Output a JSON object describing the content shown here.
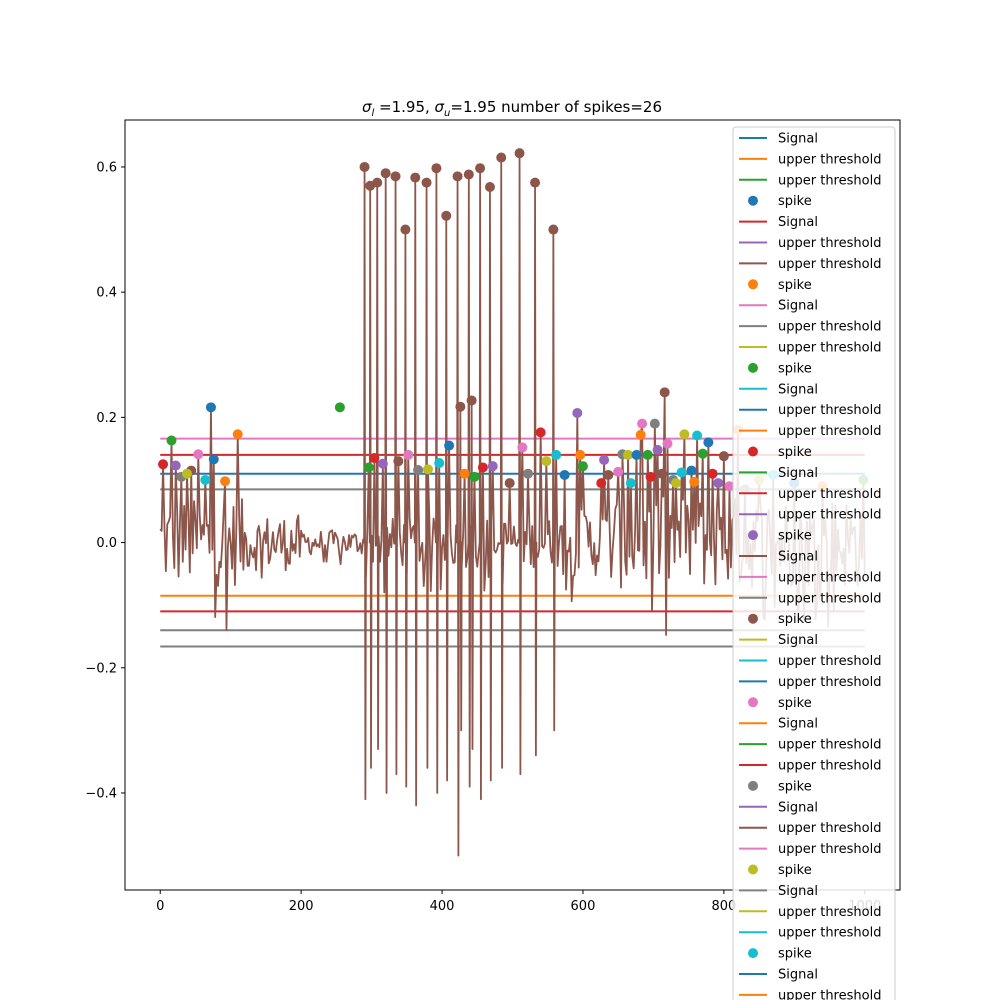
{
  "chart_data": {
    "type": "line",
    "title": {
      "sigma_l_symbol": "σ",
      "sigma_l_sub": "l",
      "sigma_l_rest": " =1.95, ",
      "sigma_u_symbol": "σ",
      "sigma_u_sub": "u",
      "sigma_u_rest": "=1.95 number of spikes=26"
    },
    "xlim": [
      -50,
      1050
    ],
    "ylim": [
      -0.555,
      0.675
    ],
    "x_ticks": [
      0,
      200,
      400,
      600,
      800,
      1000
    ],
    "x_tick_labels": [
      "0",
      "200",
      "400",
      "600",
      "800",
      "1000"
    ],
    "y_ticks": [
      -0.4,
      -0.2,
      0.0,
      0.2,
      0.4,
      0.6
    ],
    "y_tick_labels": [
      "−0.4",
      "−0.2",
      "0.0",
      "0.2",
      "0.4",
      "0.6"
    ],
    "signal_color": "#8c564b",
    "thresholds": [
      {
        "y": 0.166,
        "color": "#e377c2"
      },
      {
        "y": 0.14,
        "color": "#d62728"
      },
      {
        "y": 0.11,
        "color": "#1f77b4"
      },
      {
        "y": 0.085,
        "color": "#7f7f7f"
      },
      {
        "y": -0.085,
        "color": "#ff7f0e"
      },
      {
        "y": -0.11,
        "color": "#d62728"
      },
      {
        "y": -0.14,
        "color": "#7f7f7f"
      },
      {
        "y": -0.166,
        "color": "#7f7f7f"
      }
    ],
    "big_spikes": [
      {
        "x": 290,
        "y": 0.6,
        "low": -0.41
      },
      {
        "x": 298,
        "y": 0.57,
        "low": -0.36
      },
      {
        "x": 308,
        "y": 0.575,
        "low": -0.33
      },
      {
        "x": 320,
        "y": 0.59,
        "low": -0.4
      },
      {
        "x": 334,
        "y": 0.585,
        "low": -0.37
      },
      {
        "x": 348,
        "y": 0.5,
        "low": -0.39
      },
      {
        "x": 362,
        "y": 0.583,
        "low": -0.42
      },
      {
        "x": 378,
        "y": 0.575,
        "low": -0.36
      },
      {
        "x": 392,
        "y": 0.598,
        "low": -0.4
      },
      {
        "x": 406,
        "y": 0.522,
        "low": -0.38
      },
      {
        "x": 422,
        "y": 0.585,
        "low": -0.5
      },
      {
        "x": 426,
        "y": 0.217,
        "low": -0.3
      },
      {
        "x": 438,
        "y": 0.588,
        "low": -0.39
      },
      {
        "x": 442,
        "y": 0.227,
        "low": -0.33
      },
      {
        "x": 454,
        "y": 0.598,
        "low": -0.41
      },
      {
        "x": 468,
        "y": 0.568,
        "low": -0.38
      },
      {
        "x": 484,
        "y": 0.615,
        "low": -0.36
      },
      {
        "x": 510,
        "y": 0.622,
        "low": -0.37
      },
      {
        "x": 532,
        "y": 0.575,
        "low": -0.34
      },
      {
        "x": 558,
        "y": 0.5,
        "low": -0.3
      }
    ],
    "small_spikes": [
      {
        "x": 72,
        "y": 0.216
      },
      {
        "x": 110,
        "y": 0.173
      },
      {
        "x": 255,
        "y": 0.216
      },
      {
        "x": 540,
        "y": 0.176
      },
      {
        "x": 592,
        "y": 0.207
      },
      {
        "x": 716,
        "y": 0.24
      },
      {
        "x": 684,
        "y": 0.19
      },
      {
        "x": 702,
        "y": 0.19
      },
      {
        "x": 744,
        "y": 0.173
      },
      {
        "x": 762,
        "y": 0.171
      },
      {
        "x": 778,
        "y": 0.16
      },
      {
        "x": 820,
        "y": 0.18
      },
      {
        "x": 16,
        "y": 0.163
      },
      {
        "x": 4,
        "y": 0.125
      },
      {
        "x": 22,
        "y": 0.123
      },
      {
        "x": 44,
        "y": 0.115
      },
      {
        "x": 54,
        "y": 0.141
      },
      {
        "x": 30,
        "y": 0.105
      },
      {
        "x": 38,
        "y": 0.11
      },
      {
        "x": 64,
        "y": 0.1
      },
      {
        "x": 76,
        "y": 0.133
      },
      {
        "x": 92,
        "y": 0.098
      },
      {
        "x": 296,
        "y": 0.12
      },
      {
        "x": 304,
        "y": 0.135
      },
      {
        "x": 316,
        "y": 0.126
      },
      {
        "x": 338,
        "y": 0.13
      },
      {
        "x": 352,
        "y": 0.14
      },
      {
        "x": 366,
        "y": 0.116
      },
      {
        "x": 380,
        "y": 0.117
      },
      {
        "x": 396,
        "y": 0.127
      },
      {
        "x": 410,
        "y": 0.155
      },
      {
        "x": 432,
        "y": 0.11
      },
      {
        "x": 446,
        "y": 0.105
      },
      {
        "x": 458,
        "y": 0.12
      },
      {
        "x": 472,
        "y": 0.122
      },
      {
        "x": 496,
        "y": 0.095
      },
      {
        "x": 514,
        "y": 0.152
      },
      {
        "x": 522,
        "y": 0.11
      },
      {
        "x": 548,
        "y": 0.13
      },
      {
        "x": 562,
        "y": 0.14
      },
      {
        "x": 574,
        "y": 0.108
      },
      {
        "x": 596,
        "y": 0.14
      },
      {
        "x": 600,
        "y": 0.122
      },
      {
        "x": 626,
        "y": 0.095
      },
      {
        "x": 630,
        "y": 0.132
      },
      {
        "x": 636,
        "y": 0.108
      },
      {
        "x": 650,
        "y": 0.113
      },
      {
        "x": 656,
        "y": 0.141
      },
      {
        "x": 664,
        "y": 0.14
      },
      {
        "x": 668,
        "y": 0.095
      },
      {
        "x": 676,
        "y": 0.14
      },
      {
        "x": 682,
        "y": 0.172
      },
      {
        "x": 692,
        "y": 0.14
      },
      {
        "x": 696,
        "y": 0.105
      },
      {
        "x": 706,
        "y": 0.148
      },
      {
        "x": 712,
        "y": 0.11
      },
      {
        "x": 720,
        "y": 0.158
      },
      {
        "x": 728,
        "y": 0.1
      },
      {
        "x": 732,
        "y": 0.095
      },
      {
        "x": 740,
        "y": 0.112
      },
      {
        "x": 754,
        "y": 0.115
      },
      {
        "x": 758,
        "y": 0.097
      },
      {
        "x": 770,
        "y": 0.142
      },
      {
        "x": 784,
        "y": 0.11
      },
      {
        "x": 792,
        "y": 0.095
      },
      {
        "x": 800,
        "y": 0.138
      },
      {
        "x": 808,
        "y": 0.09
      },
      {
        "x": 830,
        "y": 0.085
      },
      {
        "x": 850,
        "y": 0.1
      },
      {
        "x": 870,
        "y": 0.108
      },
      {
        "x": 900,
        "y": 0.095
      },
      {
        "x": 940,
        "y": 0.09
      },
      {
        "x": 998,
        "y": 0.1
      }
    ],
    "noise_segments": [
      {
        "x0": 0,
        "x1": 120,
        "amp": 0.07,
        "minus": 0.17
      },
      {
        "x0": 120,
        "x1": 200,
        "amp": 0.045,
        "minus": 0.08
      },
      {
        "x0": 200,
        "x1": 290,
        "amp": 0.02,
        "minus": 0.04
      },
      {
        "x0": 290,
        "x1": 570,
        "amp": 0.04,
        "minus": 0.08
      },
      {
        "x0": 570,
        "x1": 640,
        "amp": 0.055,
        "minus": 0.1
      },
      {
        "x0": 640,
        "x1": 1000,
        "amp": 0.075,
        "minus": 0.15
      }
    ],
    "legend": {
      "placement": "right",
      "entries": [
        {
          "kind": "line",
          "label": "Signal",
          "color": "#1f77b4"
        },
        {
          "kind": "line",
          "label": "upper threshold",
          "color": "#ff7f0e"
        },
        {
          "kind": "line",
          "label": "upper threshold",
          "color": "#2ca02c"
        },
        {
          "kind": "dot",
          "label": "spike",
          "color": "#1f77b4"
        },
        {
          "kind": "line",
          "label": "Signal",
          "color": "#d62728"
        },
        {
          "kind": "line",
          "label": "upper threshold",
          "color": "#9467bd"
        },
        {
          "kind": "line",
          "label": "upper threshold",
          "color": "#8c564b"
        },
        {
          "kind": "dot",
          "label": "spike",
          "color": "#ff7f0e"
        },
        {
          "kind": "line",
          "label": "Signal",
          "color": "#e377c2"
        },
        {
          "kind": "line",
          "label": "upper threshold",
          "color": "#7f7f7f"
        },
        {
          "kind": "line",
          "label": "upper threshold",
          "color": "#bcbd22"
        },
        {
          "kind": "dot",
          "label": "spike",
          "color": "#2ca02c"
        },
        {
          "kind": "line",
          "label": "Signal",
          "color": "#17becf"
        },
        {
          "kind": "line",
          "label": "upper threshold",
          "color": "#1f77b4"
        },
        {
          "kind": "line",
          "label": "upper threshold",
          "color": "#ff7f0e"
        },
        {
          "kind": "dot",
          "label": "spike",
          "color": "#d62728"
        },
        {
          "kind": "line",
          "label": "Signal",
          "color": "#2ca02c"
        },
        {
          "kind": "line",
          "label": "upper threshold",
          "color": "#d62728"
        },
        {
          "kind": "line",
          "label": "upper threshold",
          "color": "#9467bd"
        },
        {
          "kind": "dot",
          "label": "spike",
          "color": "#9467bd"
        },
        {
          "kind": "line",
          "label": "Signal",
          "color": "#8c564b"
        },
        {
          "kind": "line",
          "label": "upper threshold",
          "color": "#e377c2"
        },
        {
          "kind": "line",
          "label": "upper threshold",
          "color": "#7f7f7f"
        },
        {
          "kind": "dot",
          "label": "spike",
          "color": "#8c564b"
        },
        {
          "kind": "line",
          "label": "Signal",
          "color": "#bcbd22"
        },
        {
          "kind": "line",
          "label": "upper threshold",
          "color": "#17becf"
        },
        {
          "kind": "line",
          "label": "upper threshold",
          "color": "#1f77b4"
        },
        {
          "kind": "dot",
          "label": "spike",
          "color": "#e377c2"
        },
        {
          "kind": "line",
          "label": "Signal",
          "color": "#ff7f0e"
        },
        {
          "kind": "line",
          "label": "upper threshold",
          "color": "#2ca02c"
        },
        {
          "kind": "line",
          "label": "upper threshold",
          "color": "#d62728"
        },
        {
          "kind": "dot",
          "label": "spike",
          "color": "#7f7f7f"
        },
        {
          "kind": "line",
          "label": "Signal",
          "color": "#9467bd"
        },
        {
          "kind": "line",
          "label": "upper threshold",
          "color": "#8c564b"
        },
        {
          "kind": "line",
          "label": "upper threshold",
          "color": "#e377c2"
        },
        {
          "kind": "dot",
          "label": "spike",
          "color": "#bcbd22"
        },
        {
          "kind": "line",
          "label": "Signal",
          "color": "#7f7f7f"
        },
        {
          "kind": "line",
          "label": "upper threshold",
          "color": "#bcbd22"
        },
        {
          "kind": "line",
          "label": "upper threshold",
          "color": "#17becf"
        },
        {
          "kind": "dot",
          "label": "spike",
          "color": "#17becf"
        },
        {
          "kind": "line",
          "label": "Signal",
          "color": "#1f77b4"
        },
        {
          "kind": "line",
          "label": "upper threshold",
          "color": "#ff7f0e"
        }
      ]
    }
  }
}
